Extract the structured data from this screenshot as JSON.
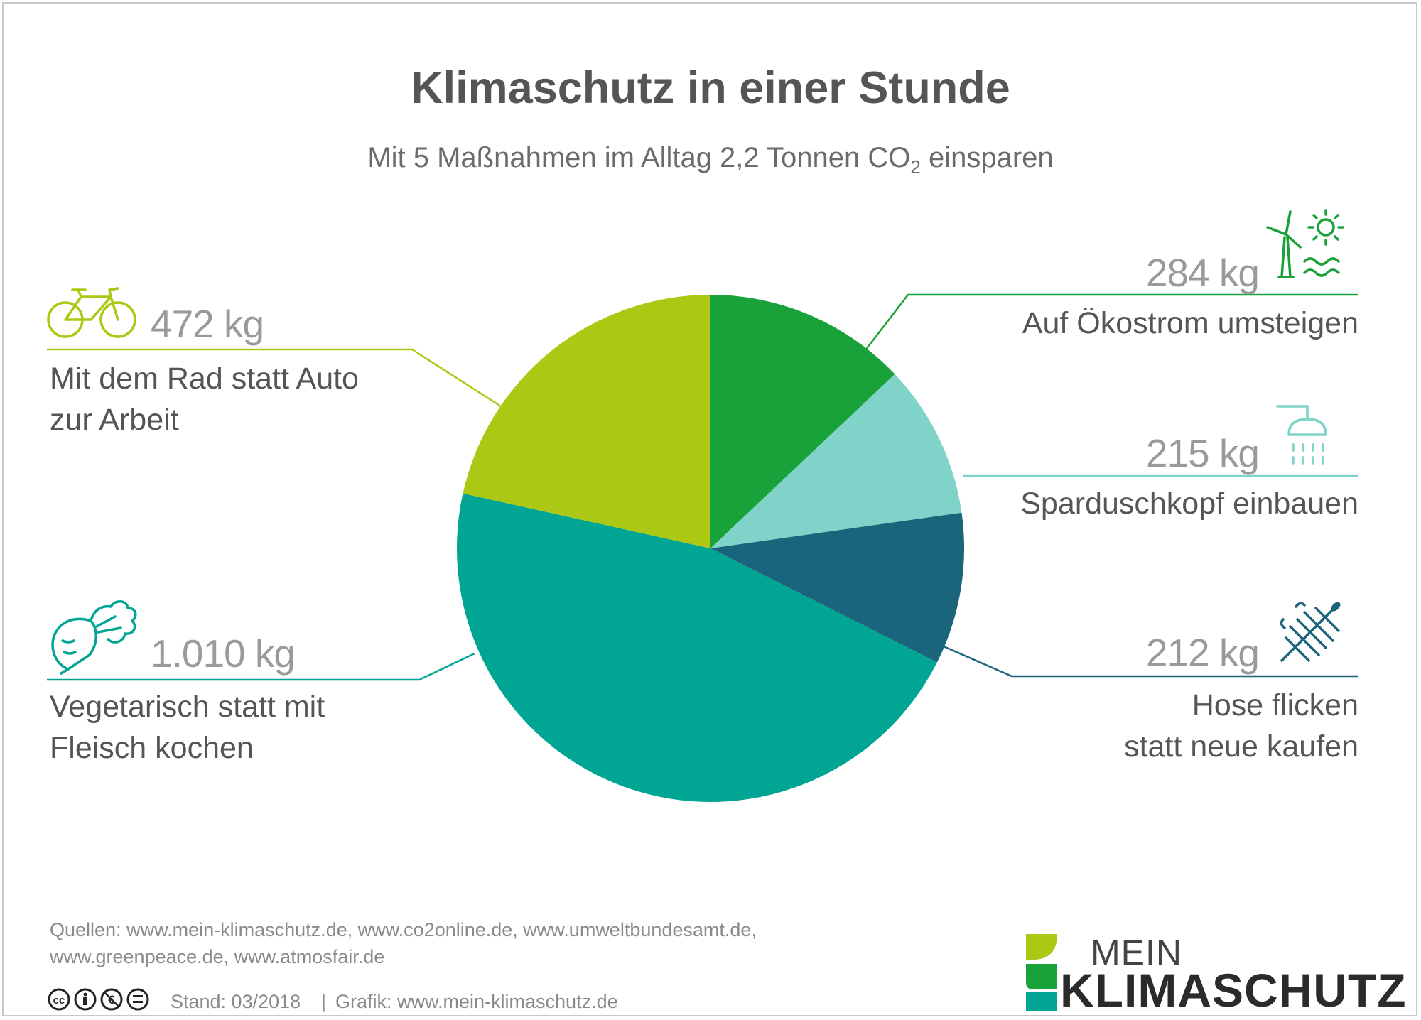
{
  "title": "Klimaschutz in einer Stunde",
  "subtitle_pre": "Mit 5 Maßnahmen im Alltag 2,2 Tonnen CO",
  "subtitle_sub": "2",
  "subtitle_post": " einsparen",
  "chart_data": {
    "type": "pie",
    "unit": "kg",
    "slices": [
      {
        "label": "Auf Ökostrom umsteigen",
        "value": 284,
        "value_label": "284 kg",
        "color": "#1aa23a",
        "icon": "wind-solar-water-icon"
      },
      {
        "label": "Sparduschkopf einbauen",
        "value": 215,
        "value_label": "215 kg",
        "color": "#7fd3c8",
        "icon": "shower-icon"
      },
      {
        "label": "Hose flicken statt neue kaufen",
        "label_lines": [
          "Hose flicken",
          "statt neue kaufen"
        ],
        "value": 212,
        "value_label": "212 kg",
        "color": "#1b657c",
        "icon": "sewing-needle-icon"
      },
      {
        "label": "Vegetarisch statt mit Fleisch kochen",
        "label_lines": [
          "Vegetarisch statt mit",
          "Fleisch kochen"
        ],
        "value": 1010,
        "value_label": "1.010 kg",
        "color": "#00a693",
        "icon": "beetroot-icon"
      },
      {
        "label": "Mit dem Rad statt Auto zur Arbeit",
        "label_lines": [
          "Mit dem Rad statt Auto",
          "zur Arbeit"
        ],
        "value": 472,
        "value_label": "472 kg",
        "color": "#acc814",
        "icon": "bicycle-icon"
      }
    ]
  },
  "footer": {
    "sources_line1": "Quellen: www.mein-klimaschutz.de, www.co2online.de, www.umweltbundesamt.de,",
    "sources_line2": "www.greenpeace.de, www.atmosfair.de",
    "stand": "Stand: 03/2018",
    "separator": "|",
    "grafik": "Grafik: www.mein-klimaschutz.de",
    "license_icons": [
      "cc-icon",
      "by-icon",
      "nc-icon",
      "nd-icon"
    ]
  },
  "logo": {
    "line1": "MEIN",
    "line2": "KLIMASCHUTZ",
    "leaf_colors": [
      "#acc814",
      "#1aa23a",
      "#00a693"
    ]
  }
}
